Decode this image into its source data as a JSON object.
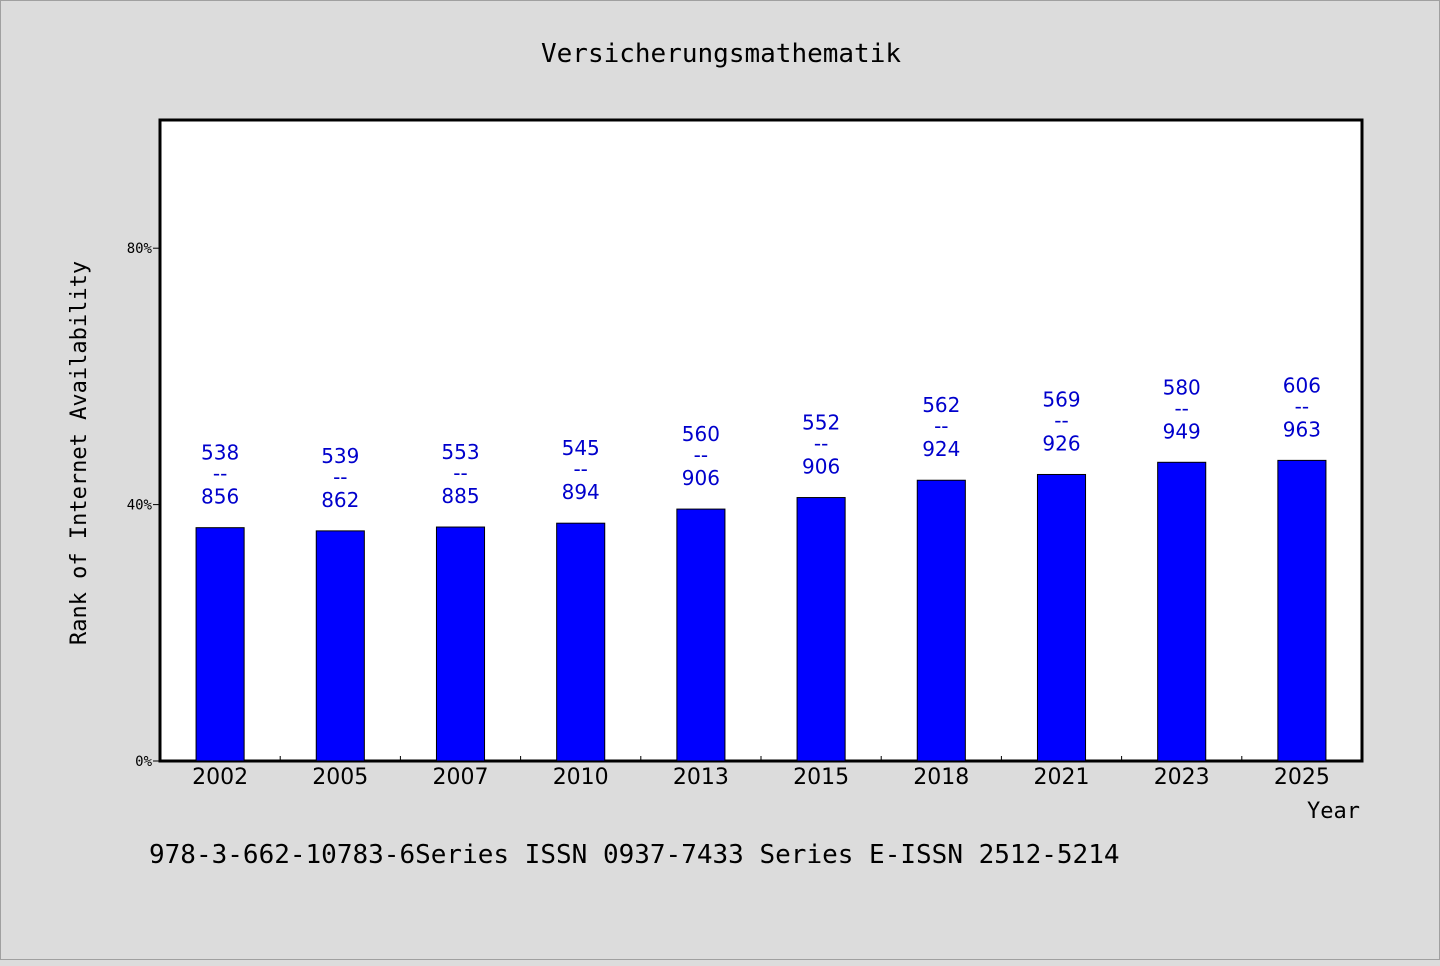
{
  "chart_data": {
    "type": "bar",
    "title": "Versicherungsmathematik",
    "xlabel": "Year",
    "ylabel": "Rank of Internet Availability",
    "ylim": [
      0,
      100
    ],
    "yticks": [
      0,
      40,
      80
    ],
    "ytick_labels": [
      "0%",
      "40%",
      "80%"
    ],
    "categories": [
      "2002",
      "2005",
      "2007",
      "2010",
      "2013",
      "2015",
      "2018",
      "2021",
      "2023",
      "2025"
    ],
    "values": [
      36.4,
      35.9,
      36.5,
      37.1,
      39.3,
      41.1,
      43.8,
      44.7,
      46.6,
      46.9
    ],
    "bar_labels": [
      {
        "top": "538",
        "mid": "--",
        "bottom": "856"
      },
      {
        "top": "539",
        "mid": "--",
        "bottom": "862"
      },
      {
        "top": "553",
        "mid": "--",
        "bottom": "885"
      },
      {
        "top": "545",
        "mid": "--",
        "bottom": "894"
      },
      {
        "top": "560",
        "mid": "--",
        "bottom": "906"
      },
      {
        "top": "552",
        "mid": "--",
        "bottom": "906"
      },
      {
        "top": "562",
        "mid": "--",
        "bottom": "924"
      },
      {
        "top": "569",
        "mid": "--",
        "bottom": "926"
      },
      {
        "top": "580",
        "mid": "--",
        "bottom": "949"
      },
      {
        "top": "606",
        "mid": "--",
        "bottom": "963"
      }
    ],
    "grid": false,
    "bar_color": "#0000ff",
    "label_color": "#0000cc"
  },
  "footer": "978-3-662-10783-6Series ISSN 0937-7433 Series E-ISSN 2512-5214"
}
